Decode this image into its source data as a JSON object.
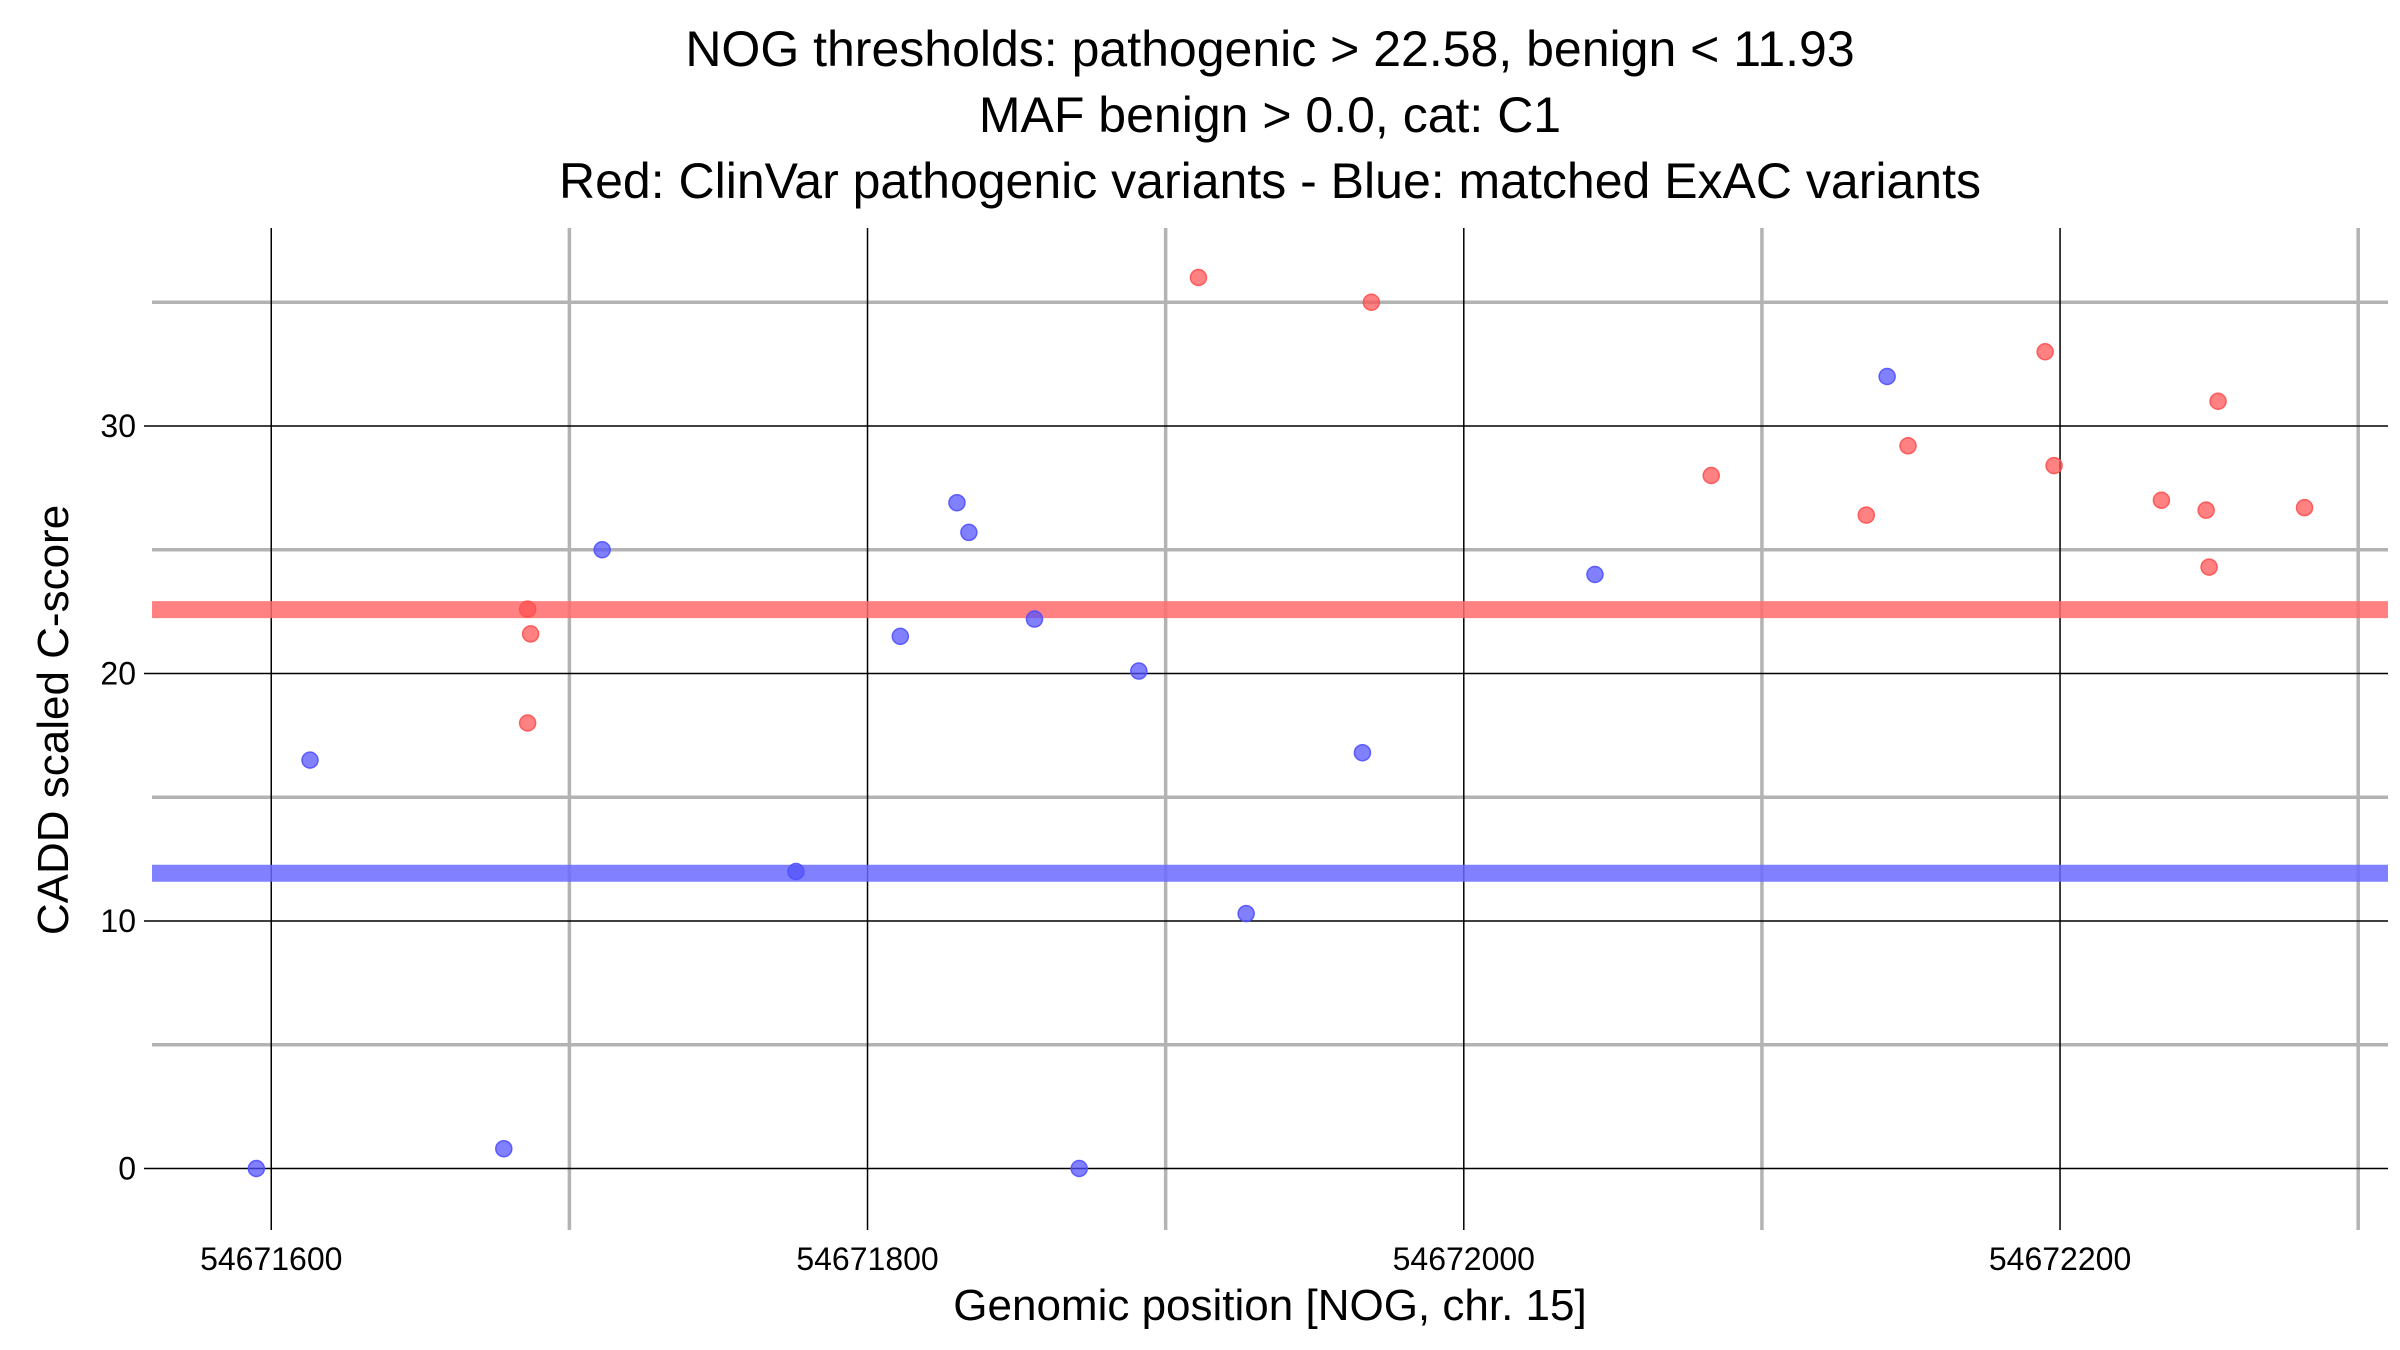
{
  "chart_data": {
    "type": "scatter",
    "title_lines": [
      "NOG thresholds: pathogenic > 22.58, benign < 11.93",
      "MAF benign > 0.0, cat: C1",
      "Red: ClinVar pathogenic variants - Blue: matched ExAC variants"
    ],
    "xlabel": "Genomic position [NOG, chr. 15]",
    "ylabel": "CADD scaled C-score",
    "xlim": [
      54671560,
      54672310
    ],
    "ylim": [
      -2,
      38
    ],
    "x_ticks": [
      54671600,
      54671800,
      54672000,
      54672200
    ],
    "y_ticks": [
      0,
      10,
      20,
      30
    ],
    "x_minor_grid": [
      54671700,
      54671900,
      54672100,
      54672300
    ],
    "y_minor_grid": [
      5,
      15,
      25,
      35
    ],
    "grid": true,
    "thresholds": [
      {
        "kind": "pathogenic",
        "value": 22.58,
        "color": "#ff6b6b"
      },
      {
        "kind": "benign",
        "value": 11.93,
        "color": "#6b6bff"
      }
    ],
    "series": [
      {
        "color": "#ff5050",
        "points": [
          {
            "x": 54671911,
            "y": 36.0
          },
          {
            "x": 54671969,
            "y": 35.0
          },
          {
            "x": 54671686,
            "y": 22.6
          },
          {
            "x": 54671687,
            "y": 21.6
          },
          {
            "x": 54671686,
            "y": 18.0
          },
          {
            "x": 54672083,
            "y": 28.0
          },
          {
            "x": 54672135,
            "y": 26.4
          },
          {
            "x": 54672149,
            "y": 29.2
          },
          {
            "x": 54672195,
            "y": 33.0
          },
          {
            "x": 54672198,
            "y": 28.4
          },
          {
            "x": 54672234,
            "y": 27.0
          },
          {
            "x": 54672249,
            "y": 26.6
          },
          {
            "x": 54672250,
            "y": 24.3
          },
          {
            "x": 54672253,
            "y": 31.0
          },
          {
            "x": 54672282,
            "y": 26.7
          }
        ]
      },
      {
        "color": "#5050ff",
        "points": [
          {
            "x": 54671595,
            "y": 0.0
          },
          {
            "x": 54671613,
            "y": 16.5
          },
          {
            "x": 54671678,
            "y": 0.8
          },
          {
            "x": 54671711,
            "y": 25.0
          },
          {
            "x": 54671776,
            "y": 12.0
          },
          {
            "x": 54671811,
            "y": 21.5
          },
          {
            "x": 54671830,
            "y": 26.9
          },
          {
            "x": 54671834,
            "y": 25.7
          },
          {
            "x": 54671856,
            "y": 22.2
          },
          {
            "x": 54671871,
            "y": 0.0
          },
          {
            "x": 54671891,
            "y": 20.1
          },
          {
            "x": 54671927,
            "y": 10.3
          },
          {
            "x": 54671966,
            "y": 16.8
          },
          {
            "x": 54672044,
            "y": 24.0
          },
          {
            "x": 54672142,
            "y": 32.0
          }
        ]
      }
    ]
  }
}
